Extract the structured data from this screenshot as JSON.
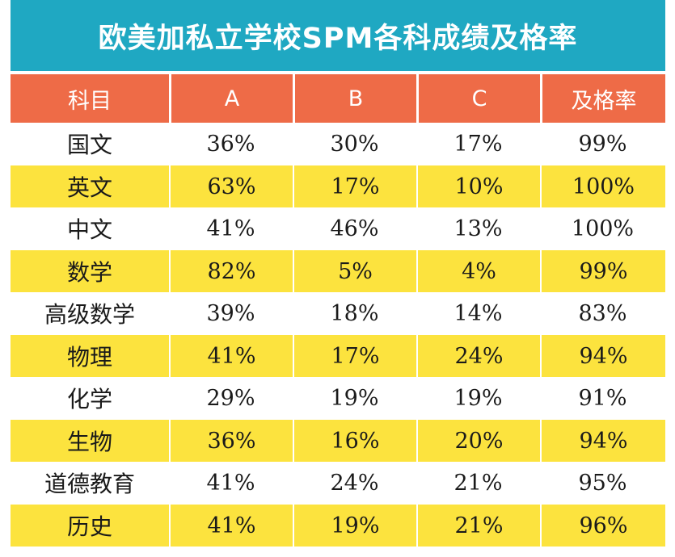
{
  "title": "欧美加私立学校SPM各科成绩及格率",
  "colors": {
    "title_bg": "#1FA8C2",
    "header_bg": "#EE6B47",
    "stripe_bg": "#FCE33E",
    "row_bg": "#FFFFFF"
  },
  "chart_data": {
    "type": "table",
    "columns": [
      "科目",
      "A",
      "B",
      "C",
      "及格率"
    ],
    "rows": [
      [
        "国文",
        "36%",
        "30%",
        "17%",
        "99%"
      ],
      [
        "英文",
        "63%",
        "17%",
        "10%",
        "100%"
      ],
      [
        "中文",
        "41%",
        "46%",
        "13%",
        "100%"
      ],
      [
        "数学",
        "82%",
        "5%",
        "4%",
        "99%"
      ],
      [
        "高级数学",
        "39%",
        "18%",
        "14%",
        "83%"
      ],
      [
        "物理",
        "41%",
        "17%",
        "24%",
        "94%"
      ],
      [
        "化学",
        "29%",
        "19%",
        "19%",
        "91%"
      ],
      [
        "生物",
        "36%",
        "16%",
        "20%",
        "94%"
      ],
      [
        "道德教育",
        "41%",
        "24%",
        "21%",
        "95%"
      ],
      [
        "历史",
        "41%",
        "19%",
        "21%",
        "96%"
      ]
    ]
  }
}
